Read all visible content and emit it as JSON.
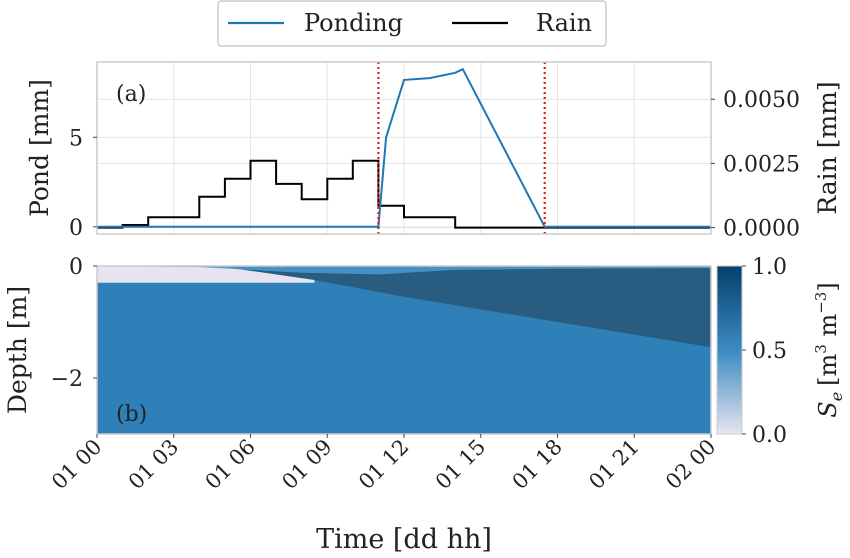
{
  "legend": {
    "items": [
      {
        "label": "Ponding",
        "color": "#1f77b4"
      },
      {
        "label": "Rain",
        "color": "#000000"
      }
    ]
  },
  "chart_data": [
    {
      "type": "line",
      "panel_label": "(a)",
      "xlabel": "Time [dd hh]",
      "x_unit": "hours since 01 00",
      "xlim": [
        0,
        24
      ],
      "x_ticks": [
        0,
        3,
        6,
        9,
        12,
        15,
        18,
        21,
        24
      ],
      "x_tick_labels": [
        "01 00",
        "01 03",
        "01 06",
        "01 09",
        "01 12",
        "01 15",
        "01 18",
        "01 21",
        "02 00"
      ],
      "ylabel": "Pond [mm]",
      "ylim": [
        -0.4,
        9.2
      ],
      "y_ticks": [
        0,
        5
      ],
      "y_tick_labels": [
        "0",
        "5"
      ],
      "ylabel_right": "Rain [mm]",
      "ylim_right": [
        -0.00025,
        0.00645
      ],
      "y_ticks_right": [
        0,
        0.0025,
        0.005
      ],
      "y_tick_labels_right": [
        "0.0000",
        "0.0025",
        "0.0050"
      ],
      "grid": true,
      "series": [
        {
          "name": "Ponding",
          "axis": "left",
          "color": "#1f77b4",
          "x": [
            0,
            11.0,
            11.3,
            12.0,
            13.0,
            14.0,
            14.3,
            17.5,
            24
          ],
          "y": [
            0,
            0,
            5.0,
            8.2,
            8.3,
            8.6,
            8.8,
            0,
            0
          ]
        },
        {
          "name": "Rain",
          "axis": "right",
          "color": "#000000",
          "x": [
            0,
            1,
            1,
            2,
            2,
            4,
            4,
            5,
            5,
            6,
            6,
            7,
            7,
            8,
            8,
            9,
            9,
            10,
            10,
            11,
            11,
            12,
            12,
            13,
            13,
            14,
            14,
            24
          ],
          "y": [
            0,
            0,
            0.0001,
            0.0001,
            0.0004,
            0.0004,
            0.0012,
            0.0012,
            0.0019,
            0.0019,
            0.0026,
            0.0026,
            0.0017,
            0.0017,
            0.0011,
            0.0011,
            0.0019,
            0.0019,
            0.0026,
            0.0026,
            0.00085,
            0.00085,
            0.0004,
            0.0004,
            0.0004,
            0.0004,
            0,
            0
          ]
        }
      ],
      "vlines": {
        "x": [
          11.0,
          17.5
        ],
        "color": "#e31a1c",
        "style": "dotted"
      }
    },
    {
      "type": "heatmap",
      "panel_label": "(b)",
      "ylabel": "Depth [m]",
      "ylim": [
        -3.0,
        0
      ],
      "y_ticks": [
        0,
        -2
      ],
      "y_tick_labels": [
        "0",
        "−2"
      ],
      "xlim": [
        0,
        24
      ],
      "colorbar": {
        "label": "Se [m³ m⁻³]",
        "label_main": "S",
        "label_sub": "e",
        "label_units": "[m",
        "label_sup1": "3",
        "label_mid": " m",
        "label_sup2": "−3",
        "label_end": "]",
        "range": [
          0.0,
          1.0
        ],
        "ticks": [
          0.0,
          0.5,
          1.0
        ],
        "tick_labels": [
          "0.0",
          "0.5",
          "1.0"
        ],
        "colors": [
          "#e7e4f0",
          "#3b8bc2",
          "#063f6b"
        ]
      },
      "regions": {
        "dry_surface_layer_depth": -0.3,
        "wetting_front": {
          "x": [
            0,
            5,
            8.5,
            12,
            16,
            20,
            24
          ],
          "depth": [
            0,
            -0.02,
            -0.25,
            -0.55,
            -0.85,
            -1.15,
            -1.45
          ]
        },
        "surface_saturation_band": {
          "x": [
            0,
            4,
            8,
            11,
            14,
            18,
            24
          ],
          "depth": [
            0,
            -0.02,
            -0.12,
            -0.15,
            -0.07,
            -0.05,
            -0.04
          ]
        }
      }
    }
  ]
}
